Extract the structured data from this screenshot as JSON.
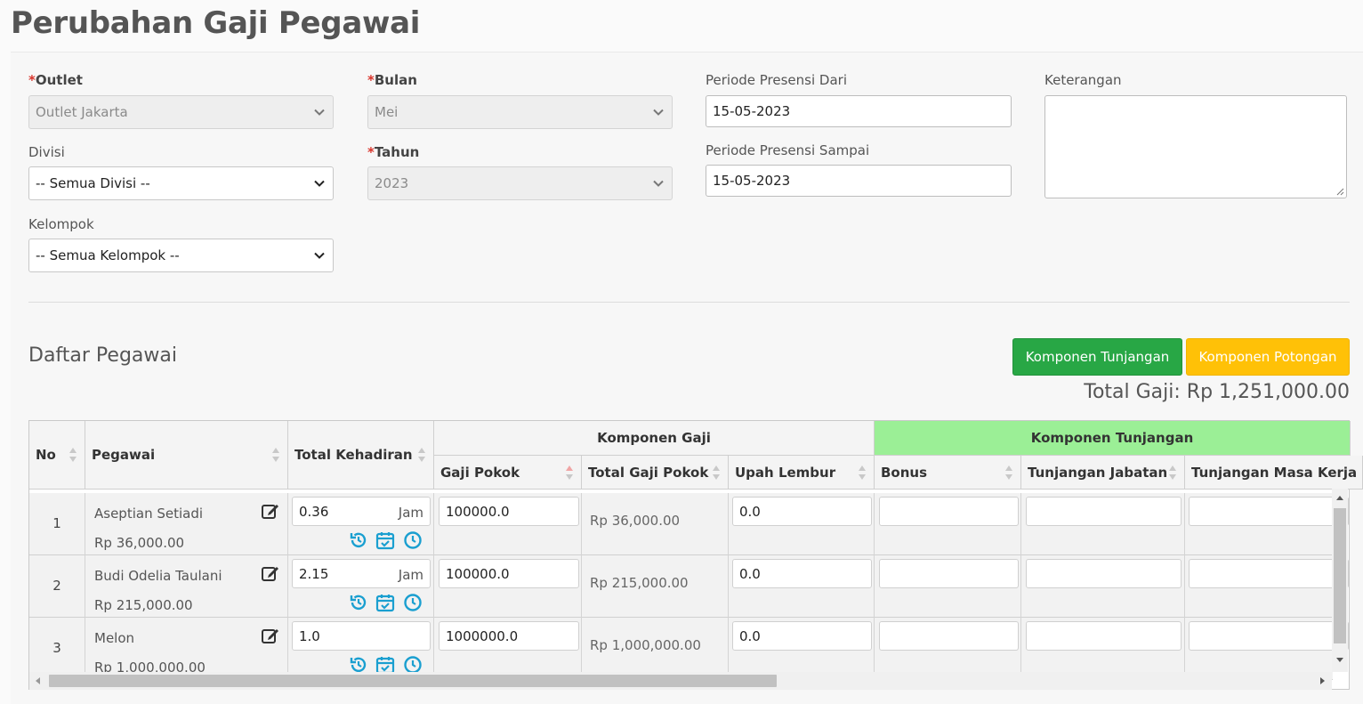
{
  "page": {
    "title": "Perubahan Gaji Pegawai"
  },
  "form": {
    "outlet": {
      "required_mark": "*",
      "label": "Outlet",
      "value": "Outlet Jakarta"
    },
    "bulan": {
      "required_mark": "*",
      "label": "Bulan",
      "value": "Mei"
    },
    "tahun": {
      "required_mark": "*",
      "label": "Tahun",
      "value": "2023"
    },
    "divisi": {
      "label": "Divisi",
      "value": "-- Semua Divisi --"
    },
    "kelompok": {
      "label": "Kelompok",
      "value": "-- Semua Kelompok --"
    },
    "periode_dari": {
      "label": "Periode Presensi Dari",
      "value": "15-05-2023"
    },
    "periode_sampai": {
      "label": "Periode Presensi Sampai",
      "value": "15-05-2023"
    },
    "keterangan": {
      "label": "Keterangan",
      "value": ""
    }
  },
  "section": {
    "title": "Daftar Pegawai",
    "btn_tunjangan": "Komponen Tunjangan",
    "btn_potongan": "Komponen Potongan",
    "total_gaji": "Total Gaji: Rp 1,251,000.00"
  },
  "table": {
    "headers": {
      "no": "No",
      "pegawai": "Pegawai",
      "total_kehadiran": "Total Kehadiran",
      "komponen_gaji": "Komponen Gaji",
      "komponen_tunjangan": "Komponen Tunjangan",
      "gaji_pokok": "Gaji Pokok",
      "total_gaji_pokok": "Total Gaji Pokok",
      "upah_lembur": "Upah Lembur",
      "bonus": "Bonus",
      "tunjangan_jabatan": "Tunjangan Jabatan",
      "tunjangan_masa_kerja": "Tunjangan Masa Kerja"
    },
    "unit_jam": "Jam",
    "rows": [
      {
        "no": "1",
        "name": "Aseptian Setiadi",
        "salary": "Rp 36,000.00",
        "kehadiran": "0.36",
        "show_unit": true,
        "gaji_pokok": "100000.0",
        "total_gaji_pokok": "Rp 36,000.00",
        "upah_lembur": "0.0"
      },
      {
        "no": "2",
        "name": "Budi Odelia Taulani",
        "salary": "Rp 215,000.00",
        "kehadiran": "2.15",
        "show_unit": true,
        "gaji_pokok": "100000.0",
        "total_gaji_pokok": "Rp 215,000.00",
        "upah_lembur": "0.0"
      },
      {
        "no": "3",
        "name": "Melon",
        "salary": "Rp 1,000,000.00",
        "kehadiran": "1.0",
        "show_unit": false,
        "gaji_pokok": "1000000.0",
        "total_gaji_pokok": "Rp 1,000,000.00",
        "upah_lembur": "0.0"
      }
    ]
  },
  "colors": {
    "green_button": "#28a745",
    "yellow_button": "#ffc107",
    "tunjangan_header": "#9bef96",
    "icon_blue": "#1a9fd0",
    "required": "#d9342b"
  },
  "icons": {
    "row_actions": [
      "history-icon",
      "calendar-check-icon",
      "clock-icon"
    ],
    "edit": "edit-icon"
  }
}
